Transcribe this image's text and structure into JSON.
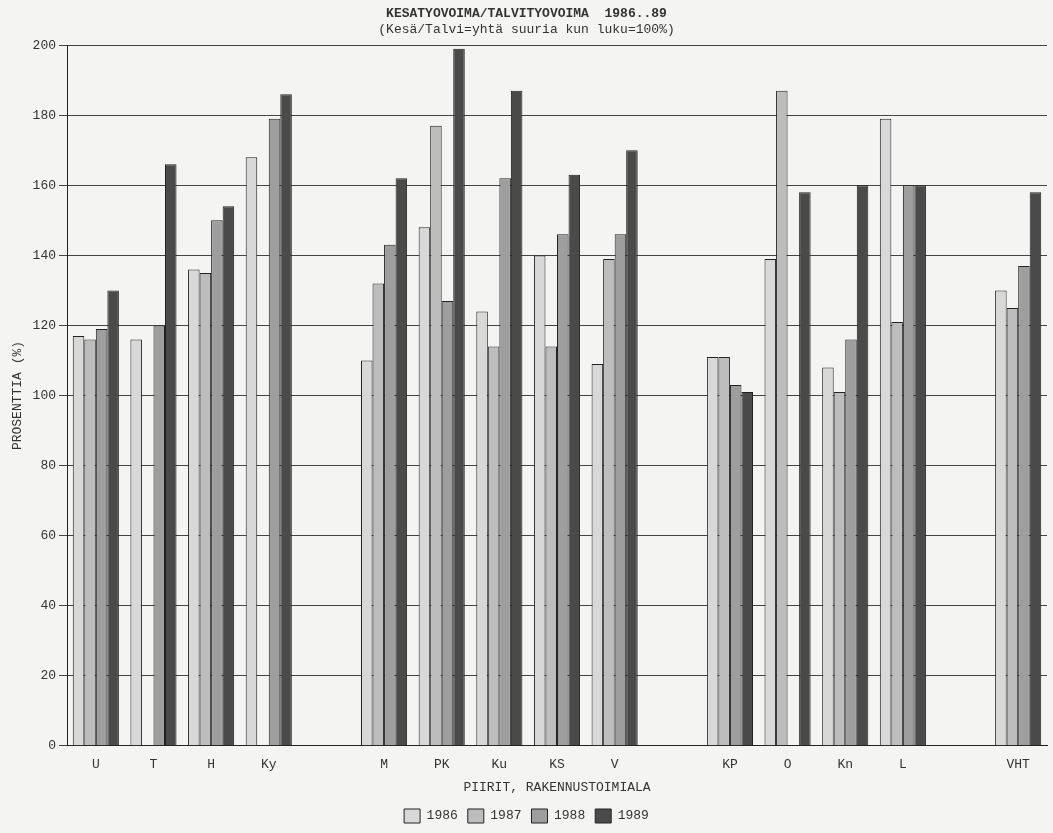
{
  "chart_data": {
    "type": "bar",
    "title": "KESATYOVOIMA/TALVITYOVOIMA  1986..89",
    "subtitle": "(Kesä/Talvi=yhtä suuria kun luku=100%)",
    "xlabel": "PIIRIT, RAKENNUSTOIMIALA",
    "ylabel": "PROSENTTIA (%)",
    "categories": [
      "U",
      "T",
      "H",
      "Ky",
      null,
      "M",
      "PK",
      "Ku",
      "KS",
      "V",
      null,
      "KP",
      "O",
      "Kn",
      "L",
      null,
      "VHT"
    ],
    "series": [
      {
        "name": "1986",
        "color": "#d8d8d8",
        "values": [
          117,
          116,
          136,
          168,
          null,
          110,
          148,
          124,
          140,
          109,
          null,
          111,
          139,
          108,
          179,
          null,
          130
        ]
      },
      {
        "name": "1987",
        "color": "#bdbdbd",
        "values": [
          116,
          null,
          135,
          null,
          null,
          132,
          177,
          114,
          114,
          139,
          null,
          111,
          187,
          101,
          121,
          null,
          125
        ]
      },
      {
        "name": "1988",
        "color": "#9e9e9e",
        "values": [
          119,
          120,
          150,
          179,
          null,
          143,
          127,
          162,
          146,
          146,
          null,
          103,
          null,
          116,
          160,
          null,
          137
        ]
      },
      {
        "name": "1989",
        "color": "#4a4a4a",
        "values": [
          130,
          166,
          154,
          186,
          null,
          162,
          199,
          187,
          163,
          170,
          null,
          101,
          158,
          160,
          160,
          null,
          158
        ]
      }
    ],
    "ylim": [
      0,
      200
    ],
    "yticks": [
      0,
      20,
      40,
      60,
      80,
      100,
      120,
      140,
      160,
      180,
      200
    ],
    "grid": "y",
    "legend": "bottom"
  }
}
